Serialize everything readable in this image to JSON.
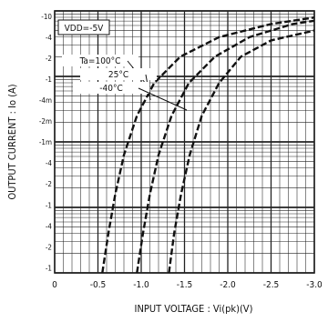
{
  "chart_data": {
    "type": "line",
    "condition_label": "VDD=-5V",
    "xlabel": "INPUT VOLTAGE : Vi(pk)(V)",
    "ylabel": "OUTPUT CURRENT : Io (A)",
    "x_ticks": [
      "0",
      "-0.5",
      "-1.0",
      "-1.5",
      "-2.0",
      "-2.5",
      "-3.0"
    ],
    "xlim": [
      0,
      -3.0
    ],
    "y_ticks": [
      "-10",
      "-4",
      "-2",
      "-1",
      "-4m",
      "-2m",
      "-1m",
      "-4",
      "-2",
      "-1",
      "-4",
      "-2",
      "-1"
    ],
    "ylog_decades": 4,
    "series": [
      {
        "name": "Ta=100°C",
        "x": [
          -0.55,
          -0.62,
          -0.7,
          -0.8,
          -0.95,
          -1.15,
          -1.45,
          -1.9,
          -2.5,
          -3.0
        ],
        "y_decade": [
          0.0,
          0.6,
          1.2,
          1.8,
          2.4,
          2.9,
          3.3,
          3.6,
          3.8,
          3.9
        ]
      },
      {
        "name": "25°C",
        "x": [
          -0.95,
          -1.02,
          -1.1,
          -1.2,
          -1.35,
          -1.55,
          -1.85,
          -2.25,
          -2.75,
          -3.0
        ],
        "y_decade": [
          0.0,
          0.6,
          1.2,
          1.8,
          2.4,
          2.9,
          3.3,
          3.6,
          3.8,
          3.85
        ]
      },
      {
        "name": "-40°C",
        "x": [
          -1.32,
          -1.38,
          -1.46,
          -1.56,
          -1.7,
          -1.9,
          -2.15,
          -2.5,
          -3.0
        ],
        "y_decade": [
          0.0,
          0.6,
          1.2,
          1.8,
          2.4,
          2.9,
          3.3,
          3.55,
          3.7
        ]
      }
    ],
    "legend_placement": "top-left",
    "grid": true,
    "colors": {
      "line": "#111111",
      "grid": "#222222"
    }
  }
}
